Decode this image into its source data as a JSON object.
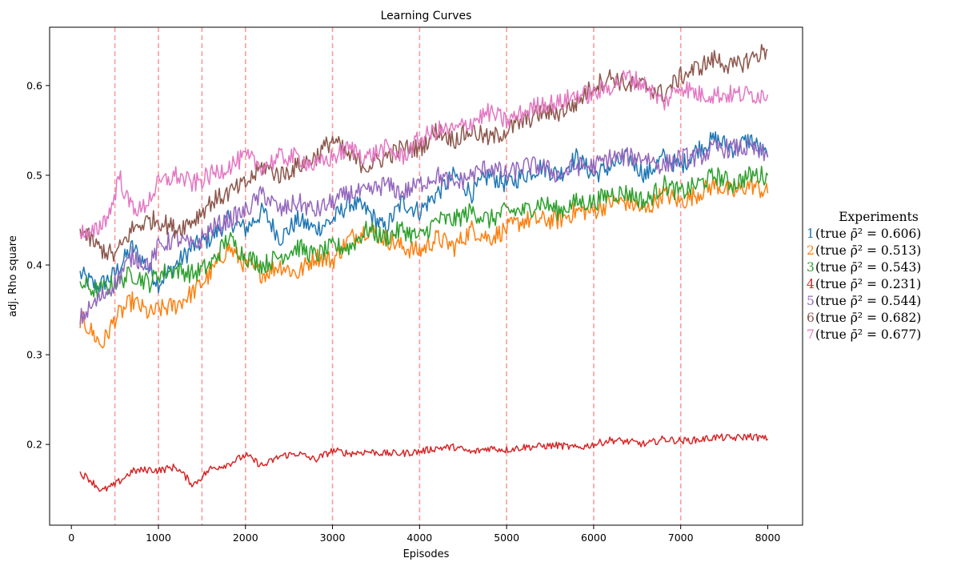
{
  "chart_data": {
    "type": "line",
    "title": "Learning Curves",
    "xlabel": "Episodes",
    "ylabel": "adj. Rho square",
    "xlim": [
      -250,
      8400
    ],
    "ylim": [
      0.11,
      0.665
    ],
    "xticks": [
      "0",
      "1000",
      "2000",
      "3000",
      "4000",
      "5000",
      "6000",
      "7000",
      "8000"
    ],
    "yticks": [
      "0.2",
      "0.3",
      "0.4",
      "0.5",
      "0.6"
    ],
    "vlines": [
      500,
      1000,
      1500,
      2000,
      3000,
      4000,
      5000,
      6000,
      7000
    ],
    "vline_color": "#ff9a9a",
    "legend_title": "Experiments",
    "legend_placement": "outside-right",
    "series": [
      {
        "name": "1",
        "legend": "(true ρ̄² = 0.606)",
        "color": "#1f77b4",
        "points": [
          [
            100,
            0.39
          ],
          [
            300,
            0.375
          ],
          [
            500,
            0.39
          ],
          [
            700,
            0.42
          ],
          [
            900,
            0.395
          ],
          [
            1000,
            0.38
          ],
          [
            1200,
            0.4
          ],
          [
            1400,
            0.42
          ],
          [
            1600,
            0.43
          ],
          [
            1800,
            0.45
          ],
          [
            2000,
            0.44
          ],
          [
            2200,
            0.46
          ],
          [
            2400,
            0.43
          ],
          [
            2600,
            0.45
          ],
          [
            2800,
            0.44
          ],
          [
            3000,
            0.45
          ],
          [
            3200,
            0.47
          ],
          [
            3400,
            0.46
          ],
          [
            3600,
            0.44
          ],
          [
            3800,
            0.47
          ],
          [
            4000,
            0.46
          ],
          [
            4200,
            0.48
          ],
          [
            4400,
            0.5
          ],
          [
            4600,
            0.48
          ],
          [
            4800,
            0.5
          ],
          [
            5000,
            0.49
          ],
          [
            5200,
            0.5
          ],
          [
            5400,
            0.51
          ],
          [
            5600,
            0.5
          ],
          [
            5800,
            0.52
          ],
          [
            6000,
            0.5
          ],
          [
            6200,
            0.51
          ],
          [
            6400,
            0.52
          ],
          [
            6600,
            0.5
          ],
          [
            6800,
            0.52
          ],
          [
            7000,
            0.51
          ],
          [
            7200,
            0.53
          ],
          [
            7400,
            0.54
          ],
          [
            7600,
            0.53
          ],
          [
            7800,
            0.54
          ],
          [
            8000,
            0.52
          ]
        ]
      },
      {
        "name": "2",
        "legend": "(true ρ̄² = 0.513)",
        "color": "#ff7f0e",
        "points": [
          [
            100,
            0.34
          ],
          [
            200,
            0.33
          ],
          [
            350,
            0.31
          ],
          [
            500,
            0.34
          ],
          [
            700,
            0.36
          ],
          [
            900,
            0.345
          ],
          [
            1000,
            0.35
          ],
          [
            1200,
            0.355
          ],
          [
            1400,
            0.37
          ],
          [
            1600,
            0.39
          ],
          [
            1800,
            0.42
          ],
          [
            2000,
            0.4
          ],
          [
            2200,
            0.39
          ],
          [
            2400,
            0.4
          ],
          [
            2600,
            0.39
          ],
          [
            2800,
            0.41
          ],
          [
            3000,
            0.405
          ],
          [
            3200,
            0.43
          ],
          [
            3400,
            0.44
          ],
          [
            3600,
            0.43
          ],
          [
            3800,
            0.42
          ],
          [
            4000,
            0.415
          ],
          [
            4200,
            0.43
          ],
          [
            4400,
            0.42
          ],
          [
            4600,
            0.44
          ],
          [
            4800,
            0.43
          ],
          [
            5000,
            0.44
          ],
          [
            5200,
            0.45
          ],
          [
            5400,
            0.45
          ],
          [
            5600,
            0.45
          ],
          [
            5800,
            0.46
          ],
          [
            6000,
            0.46
          ],
          [
            6200,
            0.47
          ],
          [
            6400,
            0.47
          ],
          [
            6600,
            0.46
          ],
          [
            6800,
            0.48
          ],
          [
            7000,
            0.47
          ],
          [
            7200,
            0.48
          ],
          [
            7400,
            0.49
          ],
          [
            7600,
            0.48
          ],
          [
            7800,
            0.49
          ],
          [
            8000,
            0.48
          ]
        ]
      },
      {
        "name": "3",
        "legend": "(true ρ̄² = 0.543)",
        "color": "#2ca02c",
        "points": [
          [
            100,
            0.38
          ],
          [
            300,
            0.37
          ],
          [
            500,
            0.38
          ],
          [
            700,
            0.39
          ],
          [
            900,
            0.38
          ],
          [
            1000,
            0.39
          ],
          [
            1200,
            0.395
          ],
          [
            1400,
            0.39
          ],
          [
            1600,
            0.4
          ],
          [
            1800,
            0.43
          ],
          [
            2000,
            0.41
          ],
          [
            2200,
            0.4
          ],
          [
            2400,
            0.41
          ],
          [
            2600,
            0.42
          ],
          [
            2800,
            0.41
          ],
          [
            3000,
            0.42
          ],
          [
            3200,
            0.42
          ],
          [
            3400,
            0.44
          ],
          [
            3600,
            0.43
          ],
          [
            3800,
            0.44
          ],
          [
            4000,
            0.43
          ],
          [
            4200,
            0.45
          ],
          [
            4400,
            0.45
          ],
          [
            4600,
            0.46
          ],
          [
            4800,
            0.45
          ],
          [
            5000,
            0.46
          ],
          [
            5200,
            0.46
          ],
          [
            5400,
            0.47
          ],
          [
            5600,
            0.46
          ],
          [
            5800,
            0.47
          ],
          [
            6000,
            0.47
          ],
          [
            6200,
            0.48
          ],
          [
            6400,
            0.48
          ],
          [
            6600,
            0.47
          ],
          [
            6800,
            0.49
          ],
          [
            7000,
            0.48
          ],
          [
            7200,
            0.49
          ],
          [
            7400,
            0.5
          ],
          [
            7600,
            0.49
          ],
          [
            7800,
            0.5
          ],
          [
            8000,
            0.5
          ]
        ]
      },
      {
        "name": "4",
        "legend": "(true ρ̄² = 0.231)",
        "color": "#d62728",
        "points": [
          [
            100,
            0.168
          ],
          [
            200,
            0.162
          ],
          [
            350,
            0.148
          ],
          [
            500,
            0.155
          ],
          [
            700,
            0.17
          ],
          [
            900,
            0.172
          ],
          [
            1000,
            0.171
          ],
          [
            1200,
            0.175
          ],
          [
            1400,
            0.155
          ],
          [
            1600,
            0.173
          ],
          [
            1800,
            0.178
          ],
          [
            2000,
            0.188
          ],
          [
            2200,
            0.176
          ],
          [
            2400,
            0.187
          ],
          [
            2600,
            0.19
          ],
          [
            2800,
            0.183
          ],
          [
            3000,
            0.193
          ],
          [
            3200,
            0.19
          ],
          [
            3400,
            0.192
          ],
          [
            3600,
            0.19
          ],
          [
            3800,
            0.19
          ],
          [
            4000,
            0.192
          ],
          [
            4200,
            0.196
          ],
          [
            4400,
            0.197
          ],
          [
            4600,
            0.191
          ],
          [
            4800,
            0.196
          ],
          [
            5000,
            0.194
          ],
          [
            5200,
            0.197
          ],
          [
            5400,
            0.198
          ],
          [
            5600,
            0.199
          ],
          [
            5800,
            0.196
          ],
          [
            6000,
            0.2
          ],
          [
            6200,
            0.205
          ],
          [
            6400,
            0.203
          ],
          [
            6600,
            0.2
          ],
          [
            6800,
            0.206
          ],
          [
            7000,
            0.204
          ],
          [
            7200,
            0.205
          ],
          [
            7400,
            0.208
          ],
          [
            7600,
            0.207
          ],
          [
            7800,
            0.209
          ],
          [
            8000,
            0.206
          ]
        ]
      },
      {
        "name": "5",
        "legend": "(true ρ̄² = 0.544)",
        "color": "#9467bd",
        "points": [
          [
            100,
            0.34
          ],
          [
            300,
            0.36
          ],
          [
            500,
            0.38
          ],
          [
            700,
            0.41
          ],
          [
            900,
            0.4
          ],
          [
            1000,
            0.42
          ],
          [
            1200,
            0.43
          ],
          [
            1400,
            0.42
          ],
          [
            1600,
            0.44
          ],
          [
            1800,
            0.45
          ],
          [
            2000,
            0.46
          ],
          [
            2200,
            0.48
          ],
          [
            2400,
            0.46
          ],
          [
            2600,
            0.47
          ],
          [
            2800,
            0.46
          ],
          [
            3000,
            0.47
          ],
          [
            3200,
            0.48
          ],
          [
            3400,
            0.48
          ],
          [
            3600,
            0.49
          ],
          [
            3800,
            0.48
          ],
          [
            4000,
            0.49
          ],
          [
            4200,
            0.5
          ],
          [
            4400,
            0.49
          ],
          [
            4600,
            0.5
          ],
          [
            4800,
            0.51
          ],
          [
            5000,
            0.5
          ],
          [
            5200,
            0.51
          ],
          [
            5400,
            0.51
          ],
          [
            5600,
            0.5
          ],
          [
            5800,
            0.51
          ],
          [
            6000,
            0.51
          ],
          [
            6200,
            0.52
          ],
          [
            6400,
            0.52
          ],
          [
            6600,
            0.52
          ],
          [
            6800,
            0.51
          ],
          [
            7000,
            0.52
          ],
          [
            7200,
            0.52
          ],
          [
            7400,
            0.53
          ],
          [
            7600,
            0.53
          ],
          [
            7800,
            0.53
          ],
          [
            8000,
            0.52
          ]
        ]
      },
      {
        "name": "6",
        "legend": "(true ρ̄² = 0.682)",
        "color": "#8c564b",
        "points": [
          [
            100,
            0.44
          ],
          [
            300,
            0.42
          ],
          [
            500,
            0.41
          ],
          [
            700,
            0.44
          ],
          [
            900,
            0.45
          ],
          [
            1000,
            0.45
          ],
          [
            1200,
            0.44
          ],
          [
            1400,
            0.45
          ],
          [
            1600,
            0.47
          ],
          [
            1800,
            0.48
          ],
          [
            2000,
            0.49
          ],
          [
            2200,
            0.51
          ],
          [
            2400,
            0.5
          ],
          [
            2600,
            0.51
          ],
          [
            2800,
            0.52
          ],
          [
            3000,
            0.54
          ],
          [
            3200,
            0.52
          ],
          [
            3400,
            0.51
          ],
          [
            3600,
            0.52
          ],
          [
            3800,
            0.53
          ],
          [
            4000,
            0.53
          ],
          [
            4200,
            0.55
          ],
          [
            4400,
            0.54
          ],
          [
            4600,
            0.55
          ],
          [
            4800,
            0.54
          ],
          [
            5000,
            0.55
          ],
          [
            5200,
            0.56
          ],
          [
            5400,
            0.57
          ],
          [
            5600,
            0.57
          ],
          [
            5800,
            0.58
          ],
          [
            6000,
            0.6
          ],
          [
            6200,
            0.61
          ],
          [
            6400,
            0.6
          ],
          [
            6600,
            0.6
          ],
          [
            6800,
            0.59
          ],
          [
            7000,
            0.61
          ],
          [
            7200,
            0.62
          ],
          [
            7400,
            0.63
          ],
          [
            7600,
            0.62
          ],
          [
            7800,
            0.63
          ],
          [
            8000,
            0.64
          ]
        ]
      },
      {
        "name": "7",
        "legend": "(true ρ̄² = 0.677)",
        "color": "#e377c2",
        "points": [
          [
            100,
            0.44
          ],
          [
            200,
            0.43
          ],
          [
            300,
            0.44
          ],
          [
            450,
            0.46
          ],
          [
            550,
            0.5
          ],
          [
            650,
            0.47
          ],
          [
            800,
            0.46
          ],
          [
            1000,
            0.49
          ],
          [
            1200,
            0.5
          ],
          [
            1400,
            0.49
          ],
          [
            1600,
            0.5
          ],
          [
            1800,
            0.51
          ],
          [
            2000,
            0.52
          ],
          [
            2200,
            0.51
          ],
          [
            2400,
            0.52
          ],
          [
            2600,
            0.52
          ],
          [
            2800,
            0.51
          ],
          [
            3000,
            0.52
          ],
          [
            3200,
            0.53
          ],
          [
            3400,
            0.52
          ],
          [
            3600,
            0.53
          ],
          [
            3800,
            0.52
          ],
          [
            4000,
            0.54
          ],
          [
            4200,
            0.55
          ],
          [
            4400,
            0.55
          ],
          [
            4600,
            0.56
          ],
          [
            4800,
            0.57
          ],
          [
            5000,
            0.56
          ],
          [
            5200,
            0.57
          ],
          [
            5400,
            0.58
          ],
          [
            5600,
            0.58
          ],
          [
            5800,
            0.59
          ],
          [
            6000,
            0.59
          ],
          [
            6200,
            0.6
          ],
          [
            6400,
            0.61
          ],
          [
            6600,
            0.6
          ],
          [
            6800,
            0.58
          ],
          [
            7000,
            0.6
          ],
          [
            7200,
            0.59
          ],
          [
            7400,
            0.59
          ],
          [
            7600,
            0.59
          ],
          [
            7800,
            0.59
          ],
          [
            8000,
            0.59
          ]
        ]
      }
    ]
  }
}
